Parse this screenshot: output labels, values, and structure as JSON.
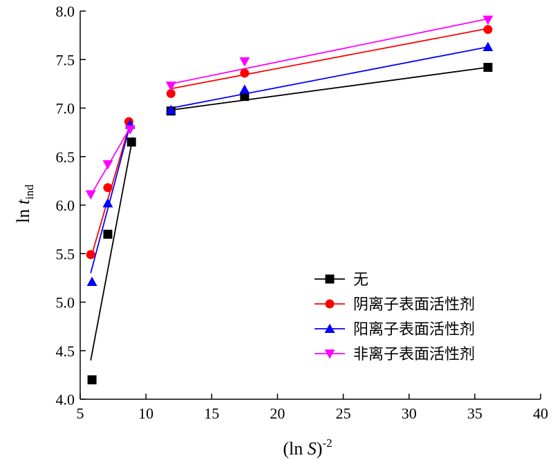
{
  "chart_data": {
    "type": "scatter",
    "title": "",
    "xlabel": {
      "prefix": "(ln ",
      "var": "S",
      "suffix": ")",
      "sup": "-2"
    },
    "ylabel": {
      "prefix": "ln ",
      "var": "t",
      "sub": "ind"
    },
    "xlim": [
      5,
      40
    ],
    "ylim": [
      4.0,
      8.0
    ],
    "xticks": [
      5,
      10,
      15,
      20,
      25,
      30,
      35,
      40
    ],
    "yticks": [
      4.0,
      4.5,
      5.0,
      5.5,
      6.0,
      6.5,
      7.0,
      7.5,
      8.0
    ],
    "grid": false,
    "legend_position": "bottom-right",
    "series": [
      {
        "name": "无",
        "color": "#000000",
        "marker": "square",
        "points": [
          [
            5.9,
            4.2
          ],
          [
            7.1,
            5.7
          ],
          [
            8.9,
            6.65
          ],
          [
            11.9,
            6.97
          ],
          [
            17.5,
            7.12
          ],
          [
            36.0,
            7.42
          ]
        ],
        "fit_segments": [
          [
            [
              5.8,
              4.4
            ],
            [
              9.0,
              6.7
            ]
          ],
          [
            [
              11.9,
              6.98
            ],
            [
              36.0,
              7.42
            ]
          ]
        ]
      },
      {
        "name": "阴离子表面活性剂",
        "color": "#ff0000",
        "marker": "circle",
        "points": [
          [
            5.8,
            5.49
          ],
          [
            7.1,
            6.18
          ],
          [
            8.7,
            6.86
          ],
          [
            11.9,
            7.15
          ],
          [
            17.5,
            7.36
          ],
          [
            36.0,
            7.81
          ]
        ],
        "fit_segments": [
          [
            [
              5.8,
              5.45
            ],
            [
              8.8,
              6.85
            ]
          ],
          [
            [
              11.9,
              7.2
            ],
            [
              36.0,
              7.82
            ]
          ]
        ]
      },
      {
        "name": "阳离子表面活性剂",
        "color": "#0000ff",
        "marker": "triangle-up",
        "points": [
          [
            5.9,
            5.21
          ],
          [
            7.1,
            6.02
          ],
          [
            8.8,
            6.83
          ],
          [
            11.9,
            6.98
          ],
          [
            17.5,
            7.19
          ],
          [
            36.0,
            7.63
          ]
        ],
        "fit_segments": [
          [
            [
              5.8,
              5.3
            ],
            [
              8.8,
              6.83
            ]
          ],
          [
            [
              11.9,
              7.0
            ],
            [
              36.0,
              7.63
            ]
          ]
        ]
      },
      {
        "name": "非离子表面活性剂",
        "color": "#ff00ff",
        "marker": "triangle-down",
        "points": [
          [
            5.8,
            6.11
          ],
          [
            7.1,
            6.42
          ],
          [
            8.8,
            6.78
          ],
          [
            11.9,
            7.23
          ],
          [
            17.5,
            7.48
          ],
          [
            36.0,
            7.91
          ]
        ],
        "fit_segments": [
          [
            [
              5.8,
              6.1
            ],
            [
              8.8,
              6.8
            ]
          ],
          [
            [
              11.9,
              7.25
            ],
            [
              36.0,
              7.92
            ]
          ]
        ]
      }
    ]
  }
}
